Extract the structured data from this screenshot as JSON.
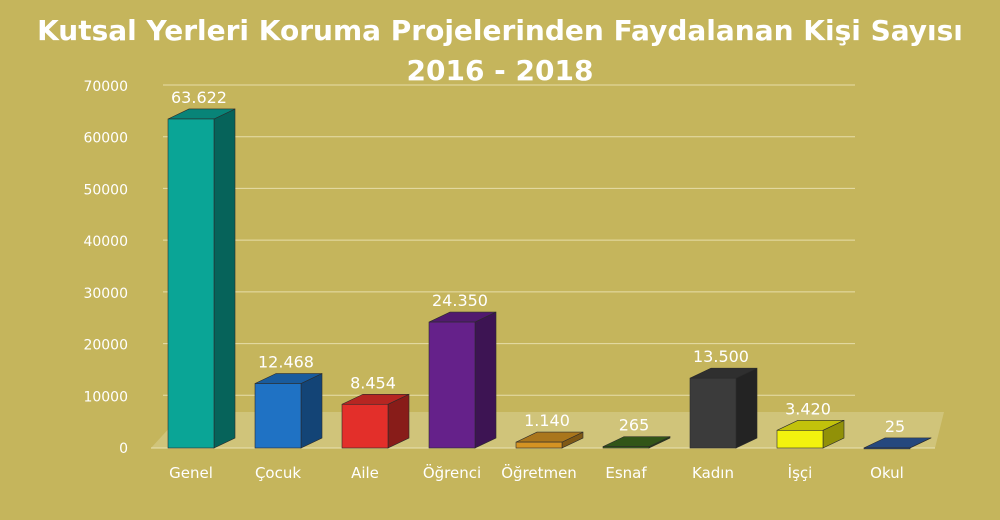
{
  "chart_data": {
    "type": "bar",
    "title_line1": "Kutsal Yerleri Koruma Projelerinden Faydalanan Kişi Sayısı",
    "title_line2": "2016 - 2018",
    "categories": [
      "Genel",
      "Çocuk",
      "Aile",
      "Öğrenci",
      "Öğretmen",
      "Esnaf",
      "Kadın",
      "İşçi",
      "Okul"
    ],
    "values": [
      63622,
      12468,
      8454,
      24350,
      1140,
      265,
      13500,
      3420,
      25
    ],
    "data_labels": [
      "63.622",
      "12.468",
      "8.454",
      "24.350",
      "1.140",
      "265",
      "13.500",
      "3.420",
      "25"
    ],
    "colors": [
      "#0aa596",
      "#1f72c4",
      "#e32f2a",
      "#65218a",
      "#d49323",
      "#3e6a1e",
      "#3b3b3b",
      "#f2f20e",
      "#2e5a9e"
    ],
    "ylim": [
      0,
      70000
    ],
    "yticks": [
      "0",
      "10000",
      "20000",
      "30000",
      "40000",
      "50000",
      "60000",
      "70000"
    ],
    "ytick_values": [
      0,
      10000,
      20000,
      30000,
      40000,
      50000,
      60000,
      70000
    ],
    "grid": true,
    "legend": "none"
  }
}
